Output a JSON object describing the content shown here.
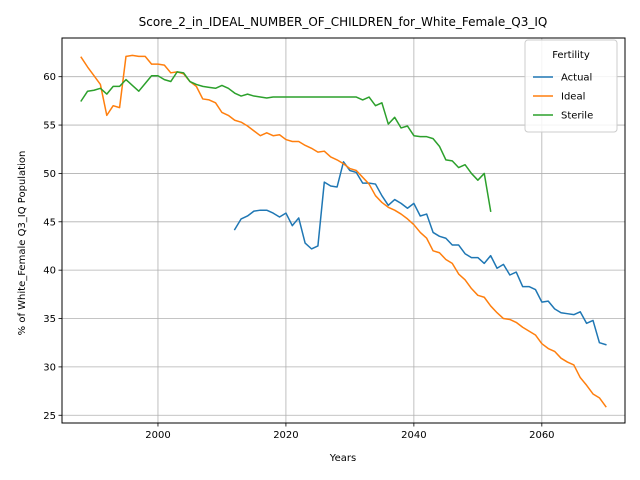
{
  "chart_data": {
    "type": "line",
    "title": "Score_2_in_IDEAL_NUMBER_OF_CHILDREN_for_White_Female_Q3_IQ",
    "xlabel": "Years",
    "ylabel": "% of White_Female Q3_IQ Population",
    "xlim": [
      1985,
      2073
    ],
    "ylim": [
      24.2,
      64.0
    ],
    "xticks": [
      2000,
      2020,
      2040,
      2060
    ],
    "yticks": [
      25,
      30,
      35,
      40,
      45,
      50,
      55,
      60
    ],
    "grid": true,
    "legend": {
      "title": "Fertility",
      "placement": "top-right"
    },
    "series": [
      {
        "name": "Actual",
        "color": "#1f77b4",
        "x": [
          2012,
          2013,
          2014,
          2015,
          2016,
          2017,
          2018,
          2019,
          2020,
          2021,
          2022,
          2023,
          2024,
          2025,
          2026,
          2027,
          2028,
          2029,
          2030,
          2031,
          2032,
          2033,
          2034,
          2035,
          2036,
          2037,
          2038,
          2039,
          2040,
          2041,
          2042,
          2043,
          2044,
          2045,
          2046,
          2047,
          2048,
          2049,
          2050,
          2051,
          2052,
          2053,
          2054,
          2055,
          2056,
          2057,
          2058,
          2059,
          2060,
          2061,
          2062,
          2063,
          2064,
          2065,
          2066,
          2067,
          2068,
          2069,
          2070
        ],
        "values": [
          44.2,
          45.3,
          45.6,
          46.1,
          46.2,
          46.2,
          45.9,
          45.5,
          45.9,
          44.6,
          45.4,
          42.8,
          42.2,
          42.5,
          49.1,
          48.7,
          48.6,
          51.2,
          50.3,
          50.1,
          49.0,
          49.0,
          48.9,
          47.7,
          46.7,
          47.3,
          46.9,
          46.4,
          46.9,
          45.6,
          45.8,
          43.9,
          43.5,
          43.3,
          42.6,
          42.6,
          41.7,
          41.3,
          41.3,
          40.7,
          41.5,
          40.2,
          40.6,
          39.5,
          39.8,
          38.3,
          38.3,
          38.0,
          36.7,
          36.8,
          36.0,
          35.6,
          35.5,
          35.4,
          35.7,
          34.5,
          34.8,
          32.5,
          32.3
        ]
      },
      {
        "name": "Ideal",
        "color": "#ff7f0e",
        "x": [
          1988,
          1989,
          1990,
          1991,
          1992,
          1993,
          1994,
          1995,
          1996,
          1997,
          1998,
          1999,
          2000,
          2001,
          2002,
          2003,
          2004,
          2005,
          2006,
          2007,
          2008,
          2009,
          2010,
          2011,
          2012,
          2013,
          2014,
          2015,
          2016,
          2017,
          2018,
          2019,
          2020,
          2021,
          2022,
          2023,
          2024,
          2025,
          2026,
          2027,
          2028,
          2029,
          2030,
          2031,
          2032,
          2033,
          2034,
          2035,
          2036,
          2037,
          2038,
          2039,
          2040,
          2041,
          2042,
          2043,
          2044,
          2045,
          2046,
          2047,
          2048,
          2049,
          2050,
          2051,
          2052,
          2053,
          2054,
          2055,
          2056,
          2057,
          2058,
          2059,
          2060,
          2061,
          2062,
          2063,
          2064,
          2065,
          2066,
          2067,
          2068,
          2069,
          2070
        ],
        "values": [
          62.0,
          61.0,
          60.1,
          59.2,
          56.0,
          57.0,
          56.8,
          62.1,
          62.2,
          62.1,
          62.1,
          61.3,
          61.3,
          61.2,
          60.4,
          60.5,
          60.3,
          59.5,
          59.0,
          57.7,
          57.6,
          57.3,
          56.3,
          56.0,
          55.5,
          55.3,
          54.9,
          54.4,
          53.9,
          54.2,
          53.9,
          54.0,
          53.5,
          53.3,
          53.3,
          52.9,
          52.6,
          52.2,
          52.3,
          51.7,
          51.4,
          51.0,
          50.5,
          50.3,
          49.6,
          48.9,
          47.7,
          47.0,
          46.5,
          46.2,
          45.8,
          45.3,
          44.7,
          43.9,
          43.3,
          42.0,
          41.8,
          41.1,
          40.7,
          39.6,
          39.0,
          38.1,
          37.4,
          37.2,
          36.3,
          35.6,
          35.0,
          34.9,
          34.6,
          34.1,
          33.7,
          33.3,
          32.4,
          31.9,
          31.6,
          30.9,
          30.5,
          30.2,
          28.9,
          28.1,
          27.2,
          26.8,
          25.9
        ]
      },
      {
        "name": "Sterile",
        "color": "#2ca02c",
        "x": [
          1988,
          1989,
          1990,
          1991,
          1992,
          1993,
          1994,
          1995,
          1996,
          1997,
          1998,
          1999,
          2000,
          2001,
          2002,
          2003,
          2004,
          2005,
          2006,
          2007,
          2008,
          2009,
          2010,
          2011,
          2012,
          2013,
          2014,
          2015,
          2016,
          2017,
          2018,
          2019,
          2020,
          2021,
          2022,
          2023,
          2024,
          2025,
          2026,
          2027,
          2028,
          2029,
          2030,
          2031,
          2032,
          2033,
          2034,
          2035,
          2036,
          2037,
          2038,
          2039,
          2040,
          2041,
          2042,
          2043,
          2044,
          2045,
          2046,
          2047,
          2048,
          2049,
          2050,
          2051,
          2052
        ],
        "values": [
          57.5,
          58.5,
          58.6,
          58.8,
          58.2,
          59.0,
          59.0,
          59.7,
          59.1,
          58.5,
          59.3,
          60.1,
          60.1,
          59.7,
          59.5,
          60.5,
          60.4,
          59.5,
          59.2,
          59.0,
          58.9,
          58.8,
          59.1,
          58.8,
          58.3,
          58.0,
          58.2,
          58.0,
          57.9,
          57.8,
          57.9,
          57.9,
          57.9,
          57.9,
          57.9,
          57.9,
          57.9,
          57.9,
          57.9,
          57.9,
          57.9,
          57.9,
          57.9,
          57.9,
          57.6,
          57.9,
          57.0,
          57.3,
          55.1,
          55.8,
          54.7,
          54.9,
          53.9,
          53.8,
          53.8,
          53.6,
          52.8,
          51.4,
          51.3,
          50.6,
          50.9,
          50.0,
          49.3,
          50.0,
          46.1
        ]
      }
    ]
  }
}
